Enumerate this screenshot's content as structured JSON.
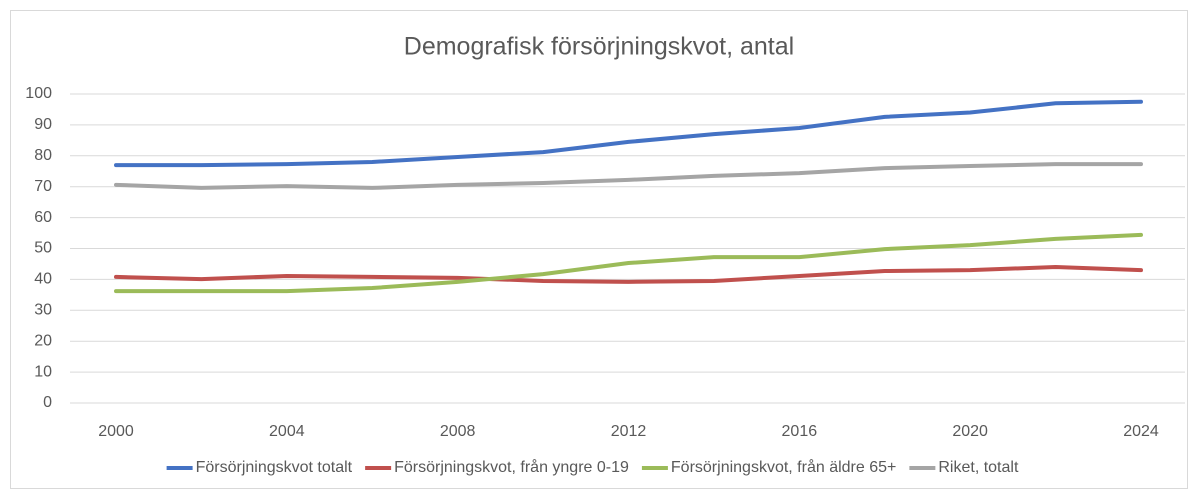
{
  "chart_data": {
    "type": "line",
    "title": "Demografisk försörjningskvot, antal",
    "x": [
      2000,
      2002,
      2004,
      2006,
      2008,
      2010,
      2012,
      2014,
      2016,
      2018,
      2020,
      2022,
      2024
    ],
    "xlim": [
      2000,
      2024
    ],
    "xticks": [
      2000,
      2004,
      2008,
      2012,
      2016,
      2020,
      2024
    ],
    "ylim": [
      0,
      100
    ],
    "yticks": [
      0,
      10,
      20,
      30,
      40,
      50,
      60,
      70,
      80,
      90,
      100
    ],
    "grid": true,
    "legend": "bottom",
    "series": [
      {
        "name": "Försörjningskvot totalt",
        "color": "#4472c4",
        "values": [
          77.0,
          77.0,
          77.3,
          78.0,
          79.6,
          81.2,
          84.5,
          87.0,
          89.0,
          92.6,
          94.0,
          97.0,
          97.5
        ]
      },
      {
        "name": "Försörjningskvot, från yngre 0-19",
        "color": "#c0504d",
        "values": [
          40.8,
          40.1,
          41.1,
          40.8,
          40.5,
          39.5,
          39.2,
          39.5,
          41.1,
          42.7,
          43.0,
          44.0,
          43.0
        ]
      },
      {
        "name": "Försörjningskvot, från äldre 65+",
        "color": "#9bbb59",
        "values": [
          36.2,
          36.2,
          36.2,
          37.2,
          39.2,
          41.7,
          45.3,
          47.2,
          47.2,
          49.8,
          51.1,
          53.1,
          54.4
        ]
      },
      {
        "name": "Riket, totalt",
        "color": "#a5a5a5",
        "values": [
          70.6,
          69.6,
          70.2,
          69.6,
          70.6,
          71.2,
          72.2,
          73.5,
          74.4,
          76.0,
          76.7,
          77.3,
          77.3
        ]
      }
    ]
  }
}
